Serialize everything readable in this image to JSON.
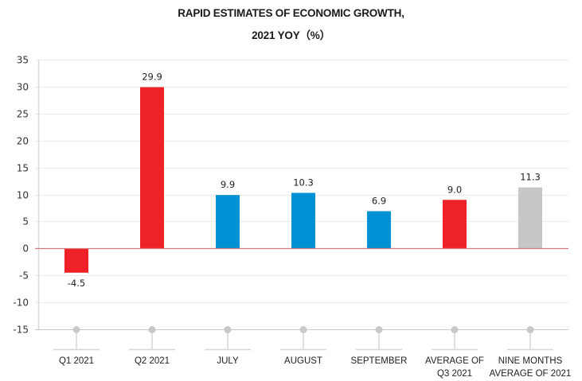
{
  "chart_data": {
    "type": "bar",
    "title": "RAPID ESTIMATES OF ECONOMIC GROWTH,",
    "subtitle": "2021 YOY（%）",
    "xlabel": "",
    "ylabel": "",
    "ylim": [
      -15,
      35
    ],
    "yticks": [
      35,
      30,
      25,
      20,
      15,
      10,
      5,
      0,
      -5,
      -10,
      -15
    ],
    "grid": true,
    "legend": "none",
    "categories": [
      [
        "Q1 2021"
      ],
      [
        "Q2 2021"
      ],
      [
        "JULY"
      ],
      [
        "AUGUST"
      ],
      [
        "SEPTEMBER"
      ],
      [
        "AVERAGE OF",
        "Q3 2021"
      ],
      [
        "NINE MONTHS",
        "AVERAGE OF 2021"
      ]
    ],
    "values": [
      -4.5,
      29.9,
      9.9,
      10.3,
      6.9,
      9.0,
      11.3
    ],
    "value_labels": [
      "-4.5",
      "29.9",
      "9.9",
      "10.3",
      "6.9",
      "9.0",
      "11.3"
    ],
    "bar_colors": [
      "#ee2227",
      "#ee2227",
      "#0090d4",
      "#0090d4",
      "#0090d4",
      "#ee2227",
      "#c6c6c8"
    ]
  },
  "colors": {
    "red": "#ee2227",
    "blue": "#0090d4",
    "gray": "#c6c6c8",
    "zero_line": "#d9777a"
  }
}
